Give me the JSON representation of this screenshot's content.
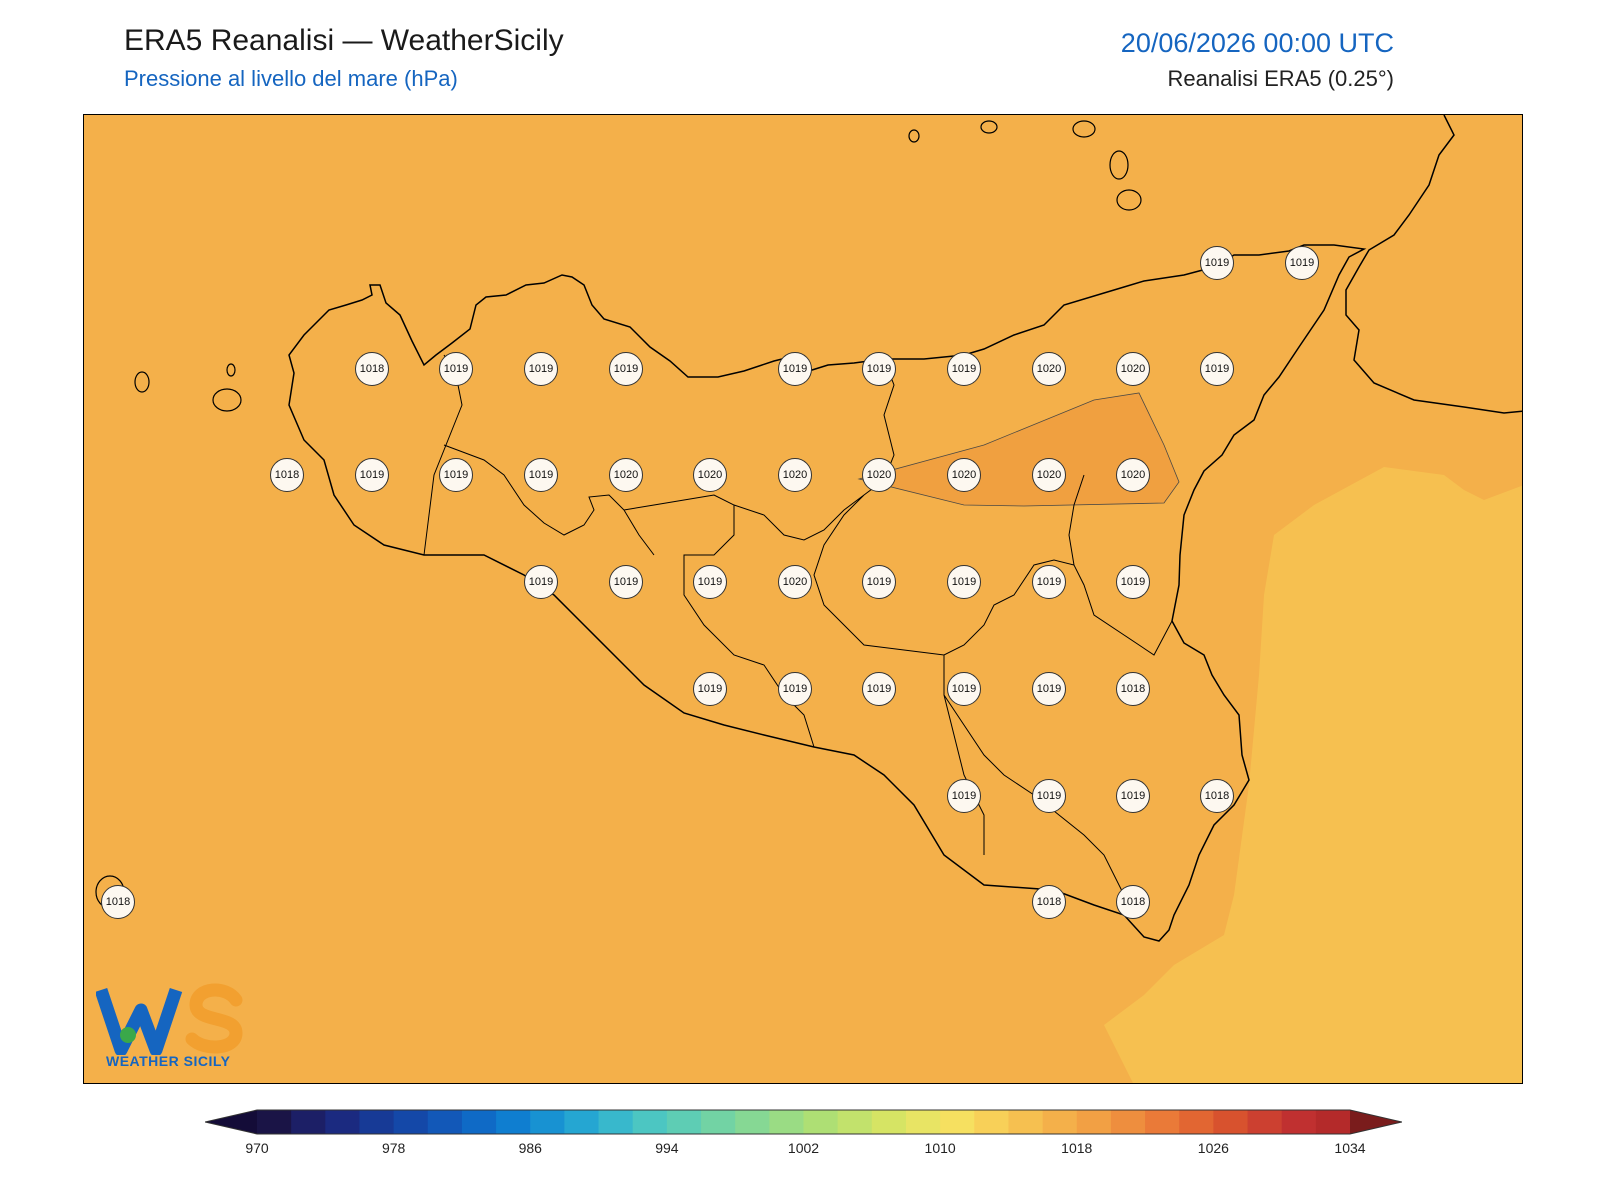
{
  "header": {
    "title": "ERA5 Reanalisi — WeatherSicily",
    "subtitle": "Pressione al livello del mare (hPa)",
    "datetime": "20/06/2026 00:00 UTC",
    "source": "Reanalisi ERA5 (0.25°)"
  },
  "logo": {
    "text": "WEATHER SICILY",
    "initials": "WS"
  },
  "colors": {
    "background_field": "#f4b04a",
    "high_field": "#f0a040",
    "east_field": "#f6c050",
    "coast": "#000000",
    "marker_fill": "#fdf8f0"
  },
  "pressure_values": [
    {
      "v": "1019",
      "i": 0
    },
    {
      "v": "1019",
      "i": 1
    },
    {
      "v": "1018",
      "i": 2
    },
    {
      "v": "1019",
      "i": 3
    },
    {
      "v": "1019",
      "i": 4
    },
    {
      "v": "1019",
      "i": 5
    },
    {
      "v": "1019",
      "i": 6
    },
    {
      "v": "1019",
      "i": 7
    },
    {
      "v": "1019",
      "i": 8
    },
    {
      "v": "1020",
      "i": 9
    },
    {
      "v": "1020",
      "i": 10
    },
    {
      "v": "1019",
      "i": 11
    },
    {
      "v": "1018",
      "i": 12
    },
    {
      "v": "1019",
      "i": 13
    },
    {
      "v": "1019",
      "i": 14
    },
    {
      "v": "1019",
      "i": 15
    },
    {
      "v": "1020",
      "i": 16
    },
    {
      "v": "1020",
      "i": 17
    },
    {
      "v": "1020",
      "i": 18
    },
    {
      "v": "1020",
      "i": 19
    },
    {
      "v": "1020",
      "i": 20
    },
    {
      "v": "1020",
      "i": 21
    },
    {
      "v": "1020",
      "i": 22
    },
    {
      "v": "1019",
      "i": 23
    },
    {
      "v": "1019",
      "i": 24
    },
    {
      "v": "1019",
      "i": 25
    },
    {
      "v": "1020",
      "i": 26
    },
    {
      "v": "1019",
      "i": 27
    },
    {
      "v": "1019",
      "i": 28
    },
    {
      "v": "1019",
      "i": 29
    },
    {
      "v": "1019",
      "i": 30
    },
    {
      "v": "1019",
      "i": 31
    },
    {
      "v": "1019",
      "i": 32
    },
    {
      "v": "1019",
      "i": 33
    },
    {
      "v": "1019",
      "i": 34
    },
    {
      "v": "1019",
      "i": 35
    },
    {
      "v": "1018",
      "i": 36
    },
    {
      "v": "1019",
      "i": 37
    },
    {
      "v": "1019",
      "i": 38
    },
    {
      "v": "1019",
      "i": 39
    },
    {
      "v": "1018",
      "i": 40
    },
    {
      "v": "1018",
      "i": 41
    },
    {
      "v": "1018",
      "i": 42
    },
    {
      "v": "1018",
      "i": 43
    }
  ],
  "colorbar": {
    "ticks": [
      "970",
      "978",
      "986",
      "994",
      "1002",
      "1010",
      "1018",
      "1026",
      "1034"
    ],
    "min": 970,
    "max": 1034,
    "colors": [
      "#1a1446",
      "#1c1f66",
      "#1b2a80",
      "#173a96",
      "#1448a8",
      "#1258b8",
      "#0f6ac6",
      "#0f7ed0",
      "#1892d2",
      "#25a6d2",
      "#38b8cc",
      "#4cc6c2",
      "#5ecdb4",
      "#72d3a4",
      "#86d894",
      "#9adc84",
      "#aedf74",
      "#c2e26c",
      "#d6e464",
      "#e8e464",
      "#f6e060",
      "#f8d058",
      "#f6c050",
      "#f4b04a",
      "#f2a044",
      "#ee8e3e",
      "#ea7a38",
      "#e26632",
      "#d8522e",
      "#cc4030",
      "#c03030",
      "#b42a2a"
    ]
  }
}
